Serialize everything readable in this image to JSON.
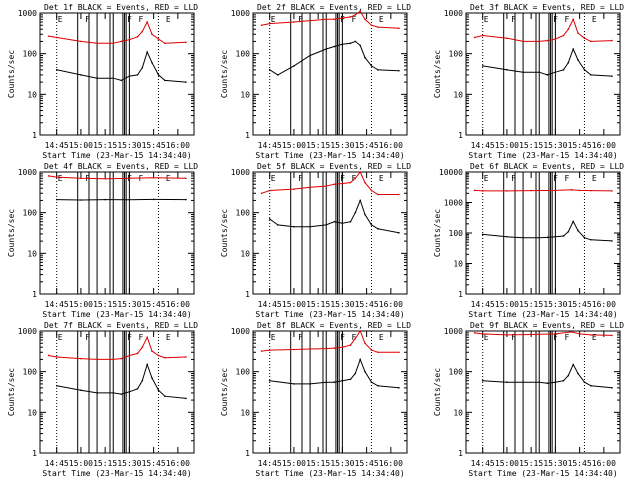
{
  "chart_data": [
    {
      "type": "line",
      "title": "Det 1f BLACK = Events, RED = LLD",
      "xlabel": "Start Time (23-Mar-15 14:34:40)",
      "ylabel": "Counts/sec",
      "yscale": "log",
      "ylim": [
        1,
        1000
      ],
      "yticks": [
        "1",
        "10",
        "100",
        "1000"
      ],
      "xticks": [
        "14:45",
        "15:00",
        "15:15",
        "15:30",
        "15:45",
        "16:00"
      ],
      "xlim": [
        "14:34:40",
        "16:10:00"
      ],
      "grid": false,
      "series": [
        {
          "name": "BLACK = Events",
          "color": "#000000",
          "x": [
            "14:45",
            "15:00",
            "15:10",
            "15:20",
            "15:25",
            "15:30",
            "15:35",
            "15:38",
            "15:41",
            "15:44",
            "15:48",
            "15:52",
            "16:05"
          ],
          "values": [
            40,
            30,
            25,
            25,
            22,
            28,
            30,
            45,
            110,
            60,
            30,
            22,
            20
          ]
        },
        {
          "name": "RED = LLD",
          "color": "#dd0000",
          "x": [
            "14:40",
            "14:45",
            "15:00",
            "15:10",
            "15:20",
            "15:25",
            "15:30",
            "15:35",
            "15:38",
            "15:41",
            "15:44",
            "15:48",
            "15:52",
            "16:05"
          ],
          "values": [
            270,
            250,
            200,
            180,
            180,
            200,
            220,
            260,
            350,
            600,
            300,
            230,
            180,
            190
          ]
        }
      ],
      "markers": {
        "E": [
          "14:45",
          "15:52"
        ],
        "F": [
          "15:02",
          "15:28",
          "15:35"
        ]
      }
    },
    {
      "type": "line",
      "title": "Det 2f BLACK = Events, RED = LLD",
      "xlabel": "Start Time (23-Mar-15 14:34:40)",
      "ylabel": "Counts/sec",
      "yscale": "log",
      "ylim": [
        1,
        1000
      ],
      "yticks": [
        "1",
        "10",
        "100",
        "1000"
      ],
      "xticks": [
        "14:45",
        "15:00",
        "15:15",
        "15:30",
        "15:45",
        "16:00"
      ],
      "xlim": [
        "14:34:40",
        "16:10:00"
      ],
      "grid": false,
      "series": [
        {
          "name": "BLACK = Events",
          "color": "#000000",
          "x": [
            "14:45",
            "14:50",
            "15:00",
            "15:10",
            "15:20",
            "15:25",
            "15:30",
            "15:35",
            "15:38",
            "15:41",
            "15:44",
            "15:48",
            "15:52",
            "16:05"
          ],
          "values": [
            40,
            30,
            50,
            90,
            130,
            150,
            170,
            180,
            200,
            160,
            80,
            50,
            40,
            38
          ]
        },
        {
          "name": "RED = LLD",
          "color": "#dd0000",
          "x": [
            "14:40",
            "14:45",
            "15:00",
            "15:10",
            "15:20",
            "15:25",
            "15:30",
            "15:35",
            "15:38",
            "15:41",
            "15:44",
            "15:48",
            "15:52",
            "16:05"
          ],
          "values": [
            500,
            550,
            600,
            650,
            700,
            700,
            750,
            800,
            900,
            1100,
            700,
            500,
            450,
            420
          ]
        }
      ],
      "markers": {
        "E": [
          "14:45",
          "15:52"
        ],
        "F": [
          "15:02",
          "15:28",
          "15:35"
        ]
      }
    },
    {
      "type": "line",
      "title": "Det 3f BLACK = Events, RED = LLD",
      "xlabel": "Start Time (23-Mar-15 14:34:40)",
      "ylabel": "Counts/sec",
      "yscale": "log",
      "ylim": [
        1,
        1000
      ],
      "yticks": [
        "1",
        "10",
        "100",
        "1000"
      ],
      "xticks": [
        "14:45",
        "15:00",
        "15:15",
        "15:30",
        "15:45",
        "16:00"
      ],
      "xlim": [
        "14:34:40",
        "16:10:00"
      ],
      "grid": false,
      "series": [
        {
          "name": "BLACK = Events",
          "color": "#000000",
          "x": [
            "14:45",
            "15:00",
            "15:10",
            "15:20",
            "15:25",
            "15:30",
            "15:35",
            "15:38",
            "15:41",
            "15:44",
            "15:48",
            "15:52",
            "16:05"
          ],
          "values": [
            50,
            40,
            35,
            35,
            30,
            35,
            40,
            60,
            130,
            70,
            40,
            30,
            28
          ]
        },
        {
          "name": "RED = LLD",
          "color": "#dd0000",
          "x": [
            "14:40",
            "14:45",
            "15:00",
            "15:10",
            "15:20",
            "15:25",
            "15:30",
            "15:35",
            "15:38",
            "15:41",
            "15:44",
            "15:48",
            "15:52",
            "16:05"
          ],
          "values": [
            250,
            280,
            240,
            200,
            200,
            210,
            230,
            280,
            400,
            700,
            320,
            240,
            200,
            210
          ]
        }
      ],
      "markers": {
        "E": [
          "14:45",
          "15:52"
        ],
        "F": [
          "15:02",
          "15:28",
          "15:35"
        ]
      }
    },
    {
      "type": "line",
      "title": "Det 4f BLACK = Events, RED = LLD",
      "xlabel": "Start Time (23-Mar-15 14:34:40)",
      "ylabel": "Counts/sec",
      "yscale": "log",
      "ylim": [
        1,
        1000
      ],
      "yticks": [
        "1",
        "10",
        "100",
        "1000"
      ],
      "xticks": [
        "14:45",
        "15:00",
        "15:15",
        "15:30",
        "15:45",
        "16:00"
      ],
      "xlim": [
        "14:34:40",
        "16:10:00"
      ],
      "grid": false,
      "series": [
        {
          "name": "BLACK = Events",
          "color": "#000000",
          "x": [
            "14:45",
            "15:00",
            "15:15",
            "15:30",
            "15:45",
            "16:05"
          ],
          "values": [
            210,
            205,
            210,
            208,
            212,
            210
          ]
        },
        {
          "name": "RED = LLD",
          "color": "#dd0000",
          "x": [
            "14:40",
            "14:45",
            "15:00",
            "15:15",
            "15:30",
            "15:45",
            "16:05"
          ],
          "values": [
            800,
            750,
            700,
            680,
            700,
            720,
            700
          ]
        }
      ],
      "markers": {
        "E": [
          "14:45",
          "15:52"
        ],
        "F": [
          "15:02",
          "15:28",
          "15:35"
        ]
      }
    },
    {
      "type": "line",
      "title": "Det 5f BLACK = Events, RED = LLD",
      "xlabel": "Start Time (23-Mar-15 14:34:40)",
      "ylabel": "Counts/sec",
      "yscale": "log",
      "ylim": [
        1,
        1000
      ],
      "yticks": [
        "1",
        "10",
        "100",
        "1000"
      ],
      "xticks": [
        "14:45",
        "15:00",
        "15:15",
        "15:30",
        "15:45",
        "16:00"
      ],
      "xlim": [
        "14:34:40",
        "16:10:00"
      ],
      "grid": false,
      "series": [
        {
          "name": "BLACK = Events",
          "color": "#000000",
          "x": [
            "14:45",
            "14:50",
            "15:00",
            "15:10",
            "15:20",
            "15:25",
            "15:30",
            "15:35",
            "15:38",
            "15:41",
            "15:44",
            "15:48",
            "15:52",
            "16:05"
          ],
          "values": [
            70,
            50,
            45,
            45,
            50,
            60,
            55,
            60,
            100,
            200,
            90,
            50,
            40,
            32
          ]
        },
        {
          "name": "RED = LLD",
          "color": "#dd0000",
          "x": [
            "14:40",
            "14:45",
            "15:00",
            "15:10",
            "15:20",
            "15:25",
            "15:30",
            "15:35",
            "15:38",
            "15:41",
            "15:44",
            "15:48",
            "15:52",
            "16:05"
          ],
          "values": [
            300,
            350,
            380,
            420,
            450,
            500,
            520,
            550,
            700,
            1000,
            550,
            350,
            280,
            280
          ]
        }
      ],
      "markers": {
        "E": [
          "14:45",
          "15:52"
        ],
        "F": [
          "15:02",
          "15:28",
          "15:35"
        ]
      }
    },
    {
      "type": "line",
      "title": "Det 6f BLACK = Events, RED = LLD",
      "xlabel": "Start Time (23-Mar-15 14:34:40)",
      "ylabel": "Counts/sec",
      "yscale": "log",
      "ylim": [
        1,
        10000
      ],
      "yticks": [
        "1",
        "10",
        "100",
        "1000",
        "10000"
      ],
      "xticks": [
        "14:45",
        "15:00",
        "15:15",
        "15:30",
        "15:45",
        "16:00"
      ],
      "xlim": [
        "14:34:40",
        "16:10:00"
      ],
      "grid": false,
      "series": [
        {
          "name": "BLACK = Events",
          "color": "#000000",
          "x": [
            "14:45",
            "15:00",
            "15:10",
            "15:20",
            "15:25",
            "15:30",
            "15:35",
            "15:38",
            "15:41",
            "15:44",
            "15:48",
            "15:52",
            "16:05"
          ],
          "values": [
            90,
            75,
            70,
            70,
            72,
            75,
            80,
            110,
            240,
            120,
            70,
            60,
            55
          ]
        },
        {
          "name": "RED = LLD",
          "color": "#dd0000",
          "x": [
            "14:40",
            "14:45",
            "15:00",
            "15:15",
            "15:30",
            "15:40",
            "15:45",
            "15:52",
            "16:05"
          ],
          "values": [
            2500,
            2400,
            2400,
            2450,
            2500,
            2600,
            2500,
            2450,
            2400
          ]
        }
      ],
      "markers": {
        "E": [
          "14:45",
          "15:52"
        ],
        "F": [
          "15:02",
          "15:28",
          "15:35"
        ]
      }
    },
    {
      "type": "line",
      "title": "Det 7f BLACK = Events, RED = LLD",
      "xlabel": "Start Time (23-Mar-15 14:34:40)",
      "ylabel": "Counts/sec",
      "yscale": "log",
      "ylim": [
        1,
        1000
      ],
      "yticks": [
        "1",
        "10",
        "100",
        "1000"
      ],
      "xticks": [
        "14:45",
        "15:00",
        "15:15",
        "15:30",
        "15:45",
        "16:00"
      ],
      "xlim": [
        "14:34:40",
        "16:10:00"
      ],
      "grid": false,
      "series": [
        {
          "name": "BLACK = Events",
          "color": "#000000",
          "x": [
            "14:45",
            "15:00",
            "15:10",
            "15:20",
            "15:25",
            "15:30",
            "15:35",
            "15:38",
            "15:41",
            "15:44",
            "15:48",
            "15:52",
            "16:05"
          ],
          "values": [
            45,
            35,
            30,
            30,
            28,
            32,
            38,
            60,
            150,
            70,
            35,
            25,
            22
          ]
        },
        {
          "name": "RED = LLD",
          "color": "#dd0000",
          "x": [
            "14:40",
            "14:45",
            "15:00",
            "15:10",
            "15:20",
            "15:25",
            "15:30",
            "15:35",
            "15:38",
            "15:41",
            "15:44",
            "15:48",
            "15:52",
            "16:05"
          ],
          "values": [
            250,
            230,
            210,
            200,
            200,
            210,
            250,
            280,
            400,
            700,
            320,
            250,
            220,
            230
          ]
        }
      ],
      "markers": {
        "E": [
          "14:45",
          "15:52"
        ],
        "F": [
          "15:02",
          "15:28",
          "15:35"
        ]
      }
    },
    {
      "type": "line",
      "title": "Det 8f BLACK = Events, RED = LLD",
      "xlabel": "Start Time (23-Mar-15 14:34:40)",
      "ylabel": "Counts/sec",
      "yscale": "log",
      "ylim": [
        1,
        1000
      ],
      "yticks": [
        "1",
        "10",
        "100",
        "1000"
      ],
      "xticks": [
        "14:45",
        "15:00",
        "15:15",
        "15:30",
        "15:45",
        "16:00"
      ],
      "xlim": [
        "14:34:40",
        "16:10:00"
      ],
      "grid": false,
      "series": [
        {
          "name": "BLACK = Events",
          "color": "#000000",
          "x": [
            "14:45",
            "15:00",
            "15:10",
            "15:20",
            "15:25",
            "15:30",
            "15:35",
            "15:38",
            "15:41",
            "15:44",
            "15:48",
            "15:52",
            "16:05"
          ],
          "values": [
            60,
            50,
            50,
            55,
            55,
            60,
            65,
            90,
            200,
            100,
            55,
            45,
            40
          ]
        },
        {
          "name": "RED = LLD",
          "color": "#dd0000",
          "x": [
            "14:40",
            "14:45",
            "15:00",
            "15:10",
            "15:20",
            "15:25",
            "15:30",
            "15:35",
            "15:38",
            "15:41",
            "15:44",
            "15:48",
            "15:52",
            "16:05"
          ],
          "values": [
            320,
            340,
            350,
            360,
            370,
            380,
            400,
            450,
            650,
            1000,
            500,
            340,
            300,
            300
          ]
        }
      ],
      "markers": {
        "E": [
          "14:45",
          "15:52"
        ],
        "F": [
          "15:02",
          "15:28",
          "15:35"
        ]
      }
    },
    {
      "type": "line",
      "title": "Det 9f BLACK = Events, RED = LLD",
      "xlabel": "Start Time (23-Mar-15 14:34:40)",
      "ylabel": "Counts/sec",
      "yscale": "log",
      "ylim": [
        1,
        1000
      ],
      "yticks": [
        "1",
        "10",
        "100",
        "1000"
      ],
      "xticks": [
        "14:45",
        "15:00",
        "15:15",
        "15:30",
        "15:45",
        "16:00"
      ],
      "xlim": [
        "14:34:40",
        "16:10:00"
      ],
      "grid": false,
      "series": [
        {
          "name": "BLACK = Events",
          "color": "#000000",
          "x": [
            "14:45",
            "15:00",
            "15:10",
            "15:20",
            "15:25",
            "15:30",
            "15:35",
            "15:38",
            "15:41",
            "15:44",
            "15:48",
            "15:52",
            "16:05"
          ],
          "values": [
            60,
            55,
            55,
            55,
            52,
            55,
            60,
            80,
            150,
            90,
            55,
            45,
            40
          ]
        },
        {
          "name": "RED = LLD",
          "color": "#dd0000",
          "x": [
            "14:40",
            "14:45",
            "15:00",
            "15:15",
            "15:30",
            "15:40",
            "15:45",
            "15:52",
            "16:05"
          ],
          "values": [
            900,
            850,
            800,
            820,
            850,
            950,
            850,
            800,
            780
          ]
        }
      ],
      "markers": {
        "E": [
          "14:45",
          "15:52"
        ],
        "F": [
          "15:02",
          "15:28",
          "15:35"
        ]
      }
    }
  ]
}
